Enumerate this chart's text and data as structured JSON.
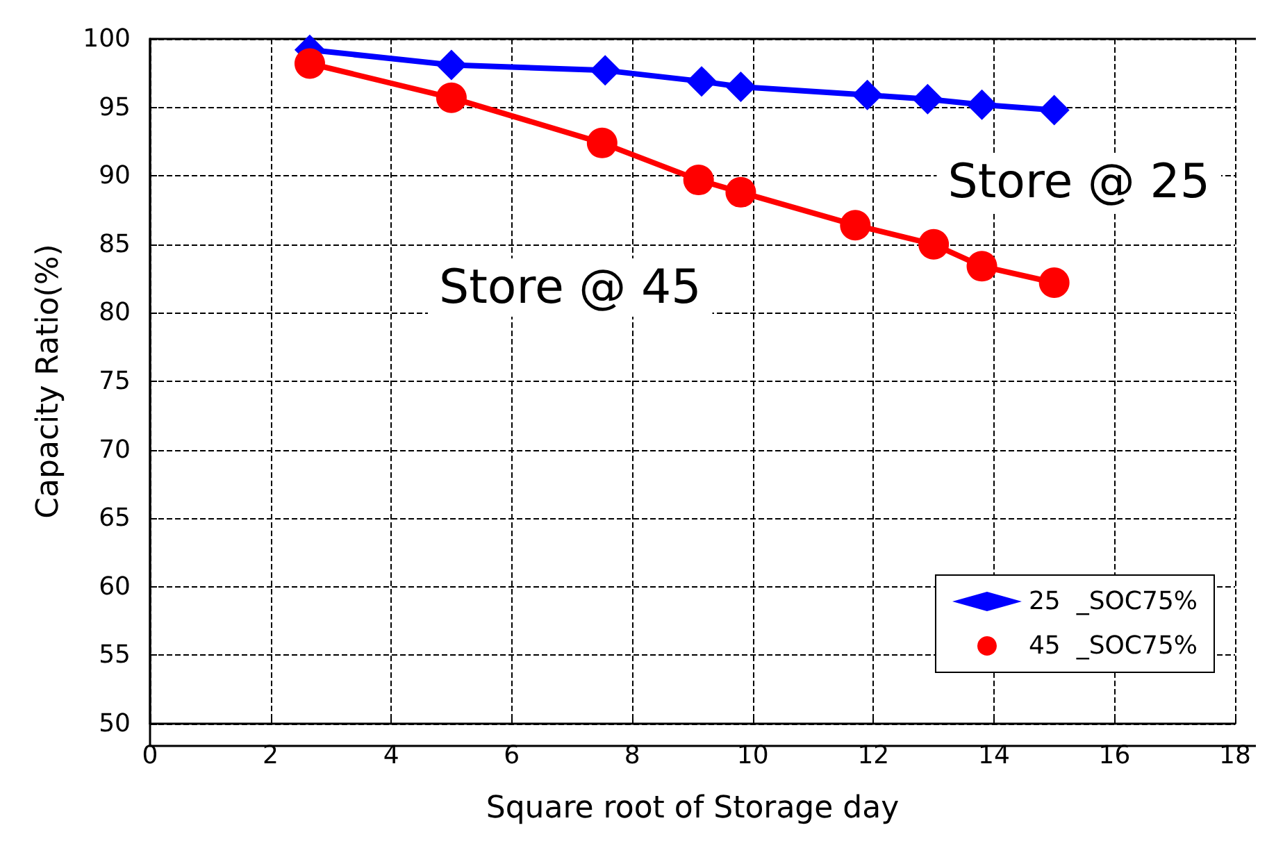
{
  "chart_data": {
    "type": "line",
    "xlabel": "Square root of Storage day",
    "ylabel": "Capacity Ratio(%)",
    "xlim": [
      0,
      18
    ],
    "xticks": [
      0,
      2,
      4,
      6,
      8,
      10,
      12,
      14,
      16,
      18
    ],
    "ylim": [
      50,
      100
    ],
    "yticks": [
      50,
      55,
      60,
      65,
      70,
      75,
      80,
      85,
      90,
      95,
      100
    ],
    "grid": true,
    "legend": "bottom right",
    "annotations": [
      "Store @ 25",
      "Store @ 45"
    ],
    "series": [
      {
        "name": "25  _SOC75%",
        "color": "#0000ff",
        "marker": "diamond",
        "x": [
          2.65,
          5.0,
          7.55,
          9.15,
          9.8,
          11.9,
          12.9,
          13.8,
          15.0
        ],
        "values": [
          99.2,
          98.1,
          97.7,
          96.9,
          96.5,
          95.9,
          95.6,
          95.2,
          94.8
        ]
      },
      {
        "name": "45  _SOC75%",
        "color": "#ff0000",
        "marker": "circle",
        "x": [
          2.65,
          5.0,
          7.5,
          9.1,
          9.8,
          11.7,
          13.0,
          13.8,
          15.0
        ],
        "values": [
          98.2,
          95.7,
          92.4,
          89.7,
          88.8,
          86.4,
          85.0,
          83.4,
          82.2
        ]
      }
    ]
  }
}
